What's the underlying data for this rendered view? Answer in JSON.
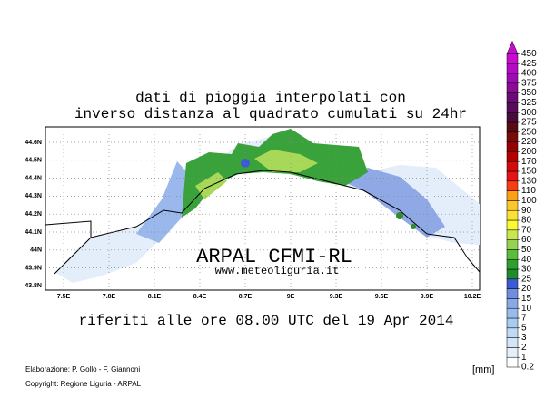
{
  "map": {
    "title": [
      "dati di pioggia interpolati con",
      "inverso distanza al quadrato cumulati su 24hr"
    ],
    "lat_ticks": [
      "44.6N",
      "44.5N",
      "44.4N",
      "44.3N",
      "44.2N",
      "44.1N",
      "44N",
      "43.9N",
      "43.8N"
    ],
    "lon_ticks": [
      "7.5E",
      "7.8E",
      "8.1E",
      "8.4E",
      "8.7E",
      "9E",
      "9.3E",
      "9.6E",
      "9.9E",
      "10.2E"
    ],
    "watermark": "ARPAL CFMI-RL",
    "website": "www.meteoliguria.it",
    "reference": "riferiti alle ore 08.00 UTC del 19 Apr 2014",
    "credits": [
      "Elaborazione: P. Gollo - F. Giannoni",
      "Copyright: Regione Liguria - ARPAL"
    ],
    "unit": "[mm]",
    "colorbar": {
      "levels": [
        0.2,
        1,
        2,
        3,
        5,
        7,
        10,
        15,
        20,
        25,
        30,
        40,
        50,
        60,
        70,
        80,
        90,
        100,
        110,
        130,
        150,
        170,
        200,
        220,
        250,
        275,
        300,
        325,
        350,
        375,
        400,
        425,
        450
      ],
      "colors": [
        "#ffffff",
        "#e6f0fa",
        "#d2e6f8",
        "#bedaf5",
        "#a8ccf0",
        "#96bcec",
        "#8aa8e8",
        "#6e8ee0",
        "#3c5ad6",
        "#1e8c28",
        "#2ea02e",
        "#5abe3c",
        "#96d250",
        "#c8e650",
        "#fafa32",
        "#fae132",
        "#fac828",
        "#faa014",
        "#fa3c14",
        "#e61414",
        "#d20a0a",
        "#b40000",
        "#960000",
        "#780a0a",
        "#5a0a14",
        "#4b0a3c",
        "#5a0a5a",
        "#6e0a78",
        "#8c0a96",
        "#a00ab4",
        "#b40ac8",
        "#c80ad2"
      ]
    }
  }
}
